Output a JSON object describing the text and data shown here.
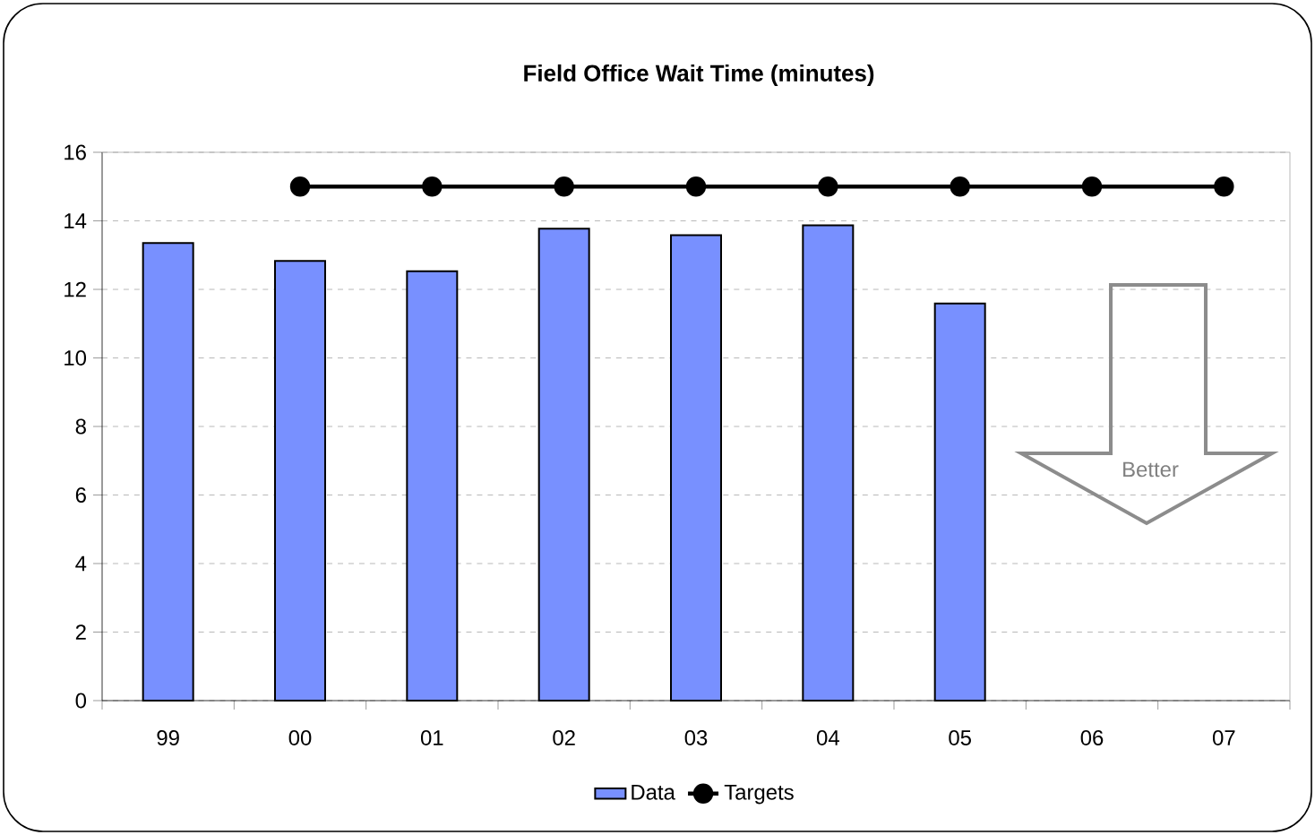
{
  "chart_data": {
    "type": "bar",
    "title": "Field Office Wait Time (minutes)",
    "categories": [
      "99",
      "00",
      "01",
      "02",
      "03",
      "04",
      "05",
      "06",
      "07"
    ],
    "series": [
      {
        "name": "Data",
        "color": "#7890ff",
        "values": [
          13.35,
          12.83,
          12.53,
          13.77,
          13.58,
          13.87,
          11.59,
          null,
          null
        ]
      },
      {
        "name": "Targets",
        "type": "line",
        "color": "#000000",
        "marker": "circle",
        "values": [
          null,
          15,
          15,
          15,
          15,
          15,
          15,
          15,
          15
        ]
      }
    ],
    "ylim": [
      0,
      16
    ],
    "yticks": [
      0,
      2,
      4,
      6,
      8,
      10,
      12,
      14,
      16
    ],
    "grid": "y",
    "legend": "bottom",
    "annotations": [
      "Better"
    ]
  }
}
